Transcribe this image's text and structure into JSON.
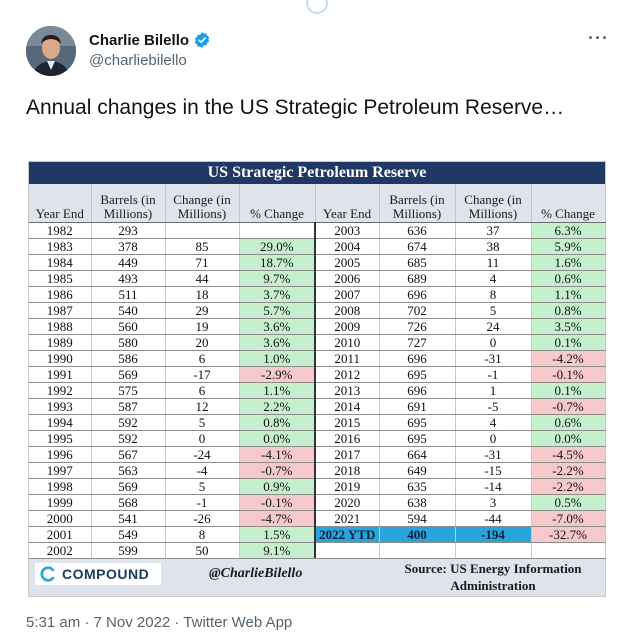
{
  "tweet": {
    "author_name": "Charlie Bilello",
    "handle": "@charliebilello",
    "text": "Annual changes in the US Strategic Petroleum Reserve…",
    "more_icon": "more-horizontal-icon",
    "verified_icon": "verified-badge-icon",
    "timestamp": "5:31 am · 7 Nov 2022 · Twitter Web App",
    "colors": {
      "verified": "#1d9bf0",
      "handle": "#536471"
    }
  },
  "table": {
    "title": "US Strategic Petroleum Reserve",
    "headers": [
      "Year End",
      "Barrels (in Millions)",
      "Change (in Millions)",
      "% Change",
      "Year End",
      "Barrels (in Millions)",
      "Change (in Millions)",
      "% Change"
    ],
    "rows": [
      [
        "1982",
        "293",
        "",
        "",
        "2003",
        "636",
        "37",
        "6.3%"
      ],
      [
        "1983",
        "378",
        "85",
        "29.0%",
        "2004",
        "674",
        "38",
        "5.9%"
      ],
      [
        "1984",
        "449",
        "71",
        "18.7%",
        "2005",
        "685",
        "11",
        "1.6%"
      ],
      [
        "1985",
        "493",
        "44",
        "9.7%",
        "2006",
        "689",
        "4",
        "0.6%"
      ],
      [
        "1986",
        "511",
        "18",
        "3.7%",
        "2007",
        "696",
        "8",
        "1.1%"
      ],
      [
        "1987",
        "540",
        "29",
        "5.7%",
        "2008",
        "702",
        "5",
        "0.8%"
      ],
      [
        "1988",
        "560",
        "19",
        "3.6%",
        "2009",
        "726",
        "24",
        "3.5%"
      ],
      [
        "1989",
        "580",
        "20",
        "3.6%",
        "2010",
        "727",
        "0",
        "0.1%"
      ],
      [
        "1990",
        "586",
        "6",
        "1.0%",
        "2011",
        "696",
        "-31",
        "-4.2%"
      ],
      [
        "1991",
        "569",
        "-17",
        "-2.9%",
        "2012",
        "695",
        "-1",
        "-0.1%"
      ],
      [
        "1992",
        "575",
        "6",
        "1.1%",
        "2013",
        "696",
        "1",
        "0.1%"
      ],
      [
        "1993",
        "587",
        "12",
        "2.2%",
        "2014",
        "691",
        "-5",
        "-0.7%"
      ],
      [
        "1994",
        "592",
        "5",
        "0.8%",
        "2015",
        "695",
        "4",
        "0.6%"
      ],
      [
        "1995",
        "592",
        "0",
        "0.0%",
        "2016",
        "695",
        "0",
        "0.0%"
      ],
      [
        "1996",
        "567",
        "-24",
        "-4.1%",
        "2017",
        "664",
        "-31",
        "-4.5%"
      ],
      [
        "1997",
        "563",
        "-4",
        "-0.7%",
        "2018",
        "649",
        "-15",
        "-2.2%"
      ],
      [
        "1998",
        "569",
        "5",
        "0.9%",
        "2019",
        "635",
        "-14",
        "-2.2%"
      ],
      [
        "1999",
        "568",
        "-1",
        "-0.1%",
        "2020",
        "638",
        "3",
        "0.5%"
      ],
      [
        "2000",
        "541",
        "-26",
        "-4.7%",
        "2021",
        "594",
        "-44",
        "-7.0%"
      ],
      [
        "2001",
        "549",
        "8",
        "1.5%",
        "2022 YTD",
        "400",
        "-194",
        "-32.7%"
      ],
      [
        "2002",
        "599",
        "50",
        "9.1%",
        "",
        "",
        "",
        ""
      ]
    ],
    "footer": {
      "logo_text": "COMPOUND",
      "logo_icon": "compound-logo-icon",
      "handle": "@CharlieBilello",
      "source_line1": "Source: US Energy Information",
      "source_line2": "Administration"
    },
    "colors": {
      "title_bg": "#1f3864",
      "positive": "#c6efce",
      "negative": "#f6c9cd",
      "ytd_highlight": "#2aa5dc"
    }
  }
}
